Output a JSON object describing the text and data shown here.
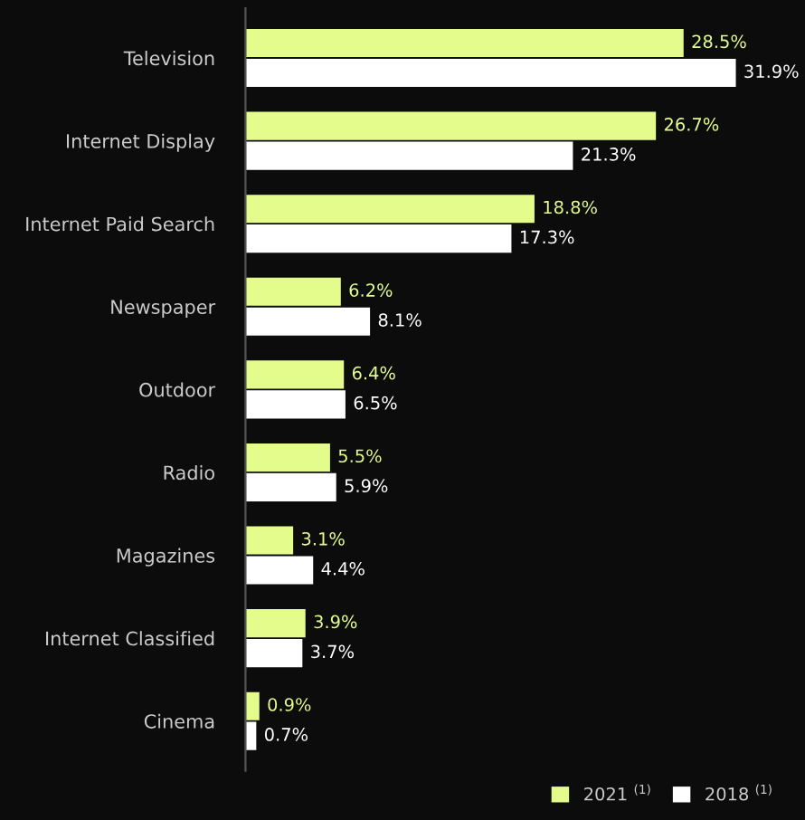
{
  "chart_data": {
    "type": "bar",
    "orientation": "horizontal",
    "categories": [
      "Television",
      "Internet Display",
      "Internet Paid Search",
      "Newspaper",
      "Outdoor",
      "Radio",
      "Magazines",
      "Internet Classified",
      "Cinema"
    ],
    "series": [
      {
        "name": "2021 $^{(1)}$",
        "color": "#e4fc8c",
        "values": [
          28.5,
          26.7,
          18.8,
          6.2,
          6.4,
          5.5,
          3.1,
          3.9,
          0.9
        ],
        "value_labels": [
          "28.5%",
          "26.7%",
          "18.8%",
          "6.2%",
          "6.4%",
          "5.5%",
          "3.1%",
          "3.9%",
          "0.9%"
        ]
      },
      {
        "name": "2018 $^{(1)}$",
        "color": "#ffffff",
        "values": [
          31.9,
          21.3,
          17.3,
          8.1,
          6.5,
          5.9,
          4.4,
          3.7,
          0.7
        ],
        "value_labels": [
          "31.9%",
          "21.3%",
          "17.3%",
          "8.1%",
          "6.5%",
          "5.9%",
          "4.4%",
          "3.7%",
          "0.7%"
        ]
      }
    ],
    "legend": "bottom right",
    "grid": false
  }
}
